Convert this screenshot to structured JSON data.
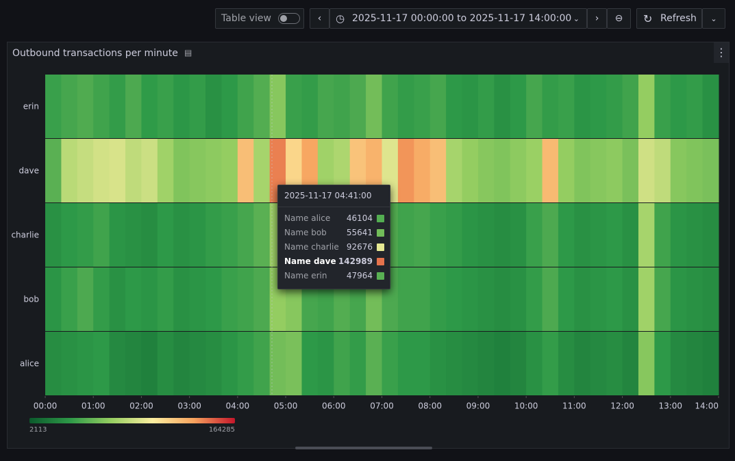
{
  "toolbar": {
    "table_view": "Table view",
    "time_range": "2025-11-17 00:00:00 to 2025-11-17 14:00:00",
    "refresh": "Refresh"
  },
  "chart_data": {
    "type": "status-history",
    "title": "Outbound transactions per minute",
    "xlim": [
      0,
      840
    ],
    "xticks": [
      {
        "value": 0,
        "label": "00:00"
      },
      {
        "value": 60,
        "label": "01:00"
      },
      {
        "value": 120,
        "label": "02:00"
      },
      {
        "value": 180,
        "label": "03:00"
      },
      {
        "value": 240,
        "label": "04:00"
      },
      {
        "value": 300,
        "label": "05:00"
      },
      {
        "value": 360,
        "label": "06:00"
      },
      {
        "value": 420,
        "label": "07:00"
      },
      {
        "value": 480,
        "label": "08:00"
      },
      {
        "value": 540,
        "label": "09:00"
      },
      {
        "value": 600,
        "label": "10:00"
      },
      {
        "value": 660,
        "label": "11:00"
      },
      {
        "value": 720,
        "label": "12:00"
      },
      {
        "value": 780,
        "label": "13:00"
      },
      {
        "value": 840,
        "label": "14:00"
      }
    ],
    "color_scale": {
      "min": 2113,
      "max": 164285,
      "colors": [
        "#0b5a2c",
        "#2e9a48",
        "#97cf62",
        "#fbeea0",
        "#f7a35e",
        "#c4162a"
      ]
    },
    "series": [
      {
        "name": "erin",
        "values": [
          38000,
          42000,
          45000,
          40000,
          36000,
          44000,
          35000,
          38000,
          33000,
          36000,
          30000,
          34000,
          40000,
          46000,
          62000,
          38000,
          36000,
          42000,
          40000,
          44000,
          56000,
          40000,
          36000,
          38000,
          42000,
          34000,
          32000,
          36000,
          30000,
          34000,
          42000,
          36000,
          38000,
          32000,
          34000,
          36000,
          40000,
          66000,
          38000,
          34000,
          36000,
          30000
        ]
      },
      {
        "name": "dave",
        "values": [
          48000,
          78000,
          82000,
          86000,
          88000,
          80000,
          84000,
          70000,
          60000,
          62000,
          64000,
          66000,
          120000,
          72000,
          140000,
          110000,
          130000,
          70000,
          74000,
          118000,
          125000,
          90000,
          135000,
          128000,
          120000,
          72000,
          66000,
          62000,
          60000,
          64000,
          68000,
          122000,
          66000,
          60000,
          62000,
          64000,
          58000,
          85000,
          80000,
          62000,
          60000,
          58000
        ]
      },
      {
        "name": "charlie",
        "values": [
          30000,
          34000,
          36000,
          40000,
          32000,
          30000,
          28000,
          34000,
          30000,
          32000,
          36000,
          38000,
          42000,
          48000,
          70000,
          60000,
          40000,
          44000,
          48000,
          42000,
          58000,
          46000,
          40000,
          42000,
          38000,
          36000,
          32000,
          30000,
          28000,
          30000,
          38000,
          44000,
          34000,
          30000,
          32000,
          34000,
          30000,
          72000,
          40000,
          32000,
          30000,
          28000
        ]
      },
      {
        "name": "bob",
        "values": [
          32000,
          38000,
          44000,
          36000,
          30000,
          34000,
          32000,
          36000,
          30000,
          32000,
          34000,
          38000,
          40000,
          44000,
          66000,
          62000,
          42000,
          40000,
          46000,
          42000,
          56000,
          44000,
          40000,
          40000,
          36000,
          34000,
          32000,
          30000,
          28000,
          30000,
          36000,
          44000,
          34000,
          30000,
          32000,
          34000,
          30000,
          70000,
          42000,
          32000,
          30000,
          28000
        ]
      },
      {
        "name": "alice",
        "values": [
          28000,
          30000,
          32000,
          34000,
          26000,
          24000,
          22000,
          28000,
          24000,
          26000,
          28000,
          32000,
          36000,
          40000,
          56000,
          58000,
          34000,
          32000,
          40000,
          36000,
          48000,
          38000,
          34000,
          34000,
          30000,
          28000,
          26000,
          24000,
          22000,
          24000,
          30000,
          36000,
          28000,
          24000,
          26000,
          28000,
          24000,
          62000,
          34000,
          26000,
          24000,
          22000
        ]
      }
    ]
  },
  "tooltip": {
    "time": "2025-11-17 04:41:00",
    "rows": [
      {
        "name": "Name alice",
        "value": 46104
      },
      {
        "name": "Name bob",
        "value": 55641
      },
      {
        "name": "Name charlie",
        "value": 92676
      },
      {
        "name": "Name dave",
        "value": 142989
      },
      {
        "name": "Name erin",
        "value": 47964
      }
    ]
  }
}
